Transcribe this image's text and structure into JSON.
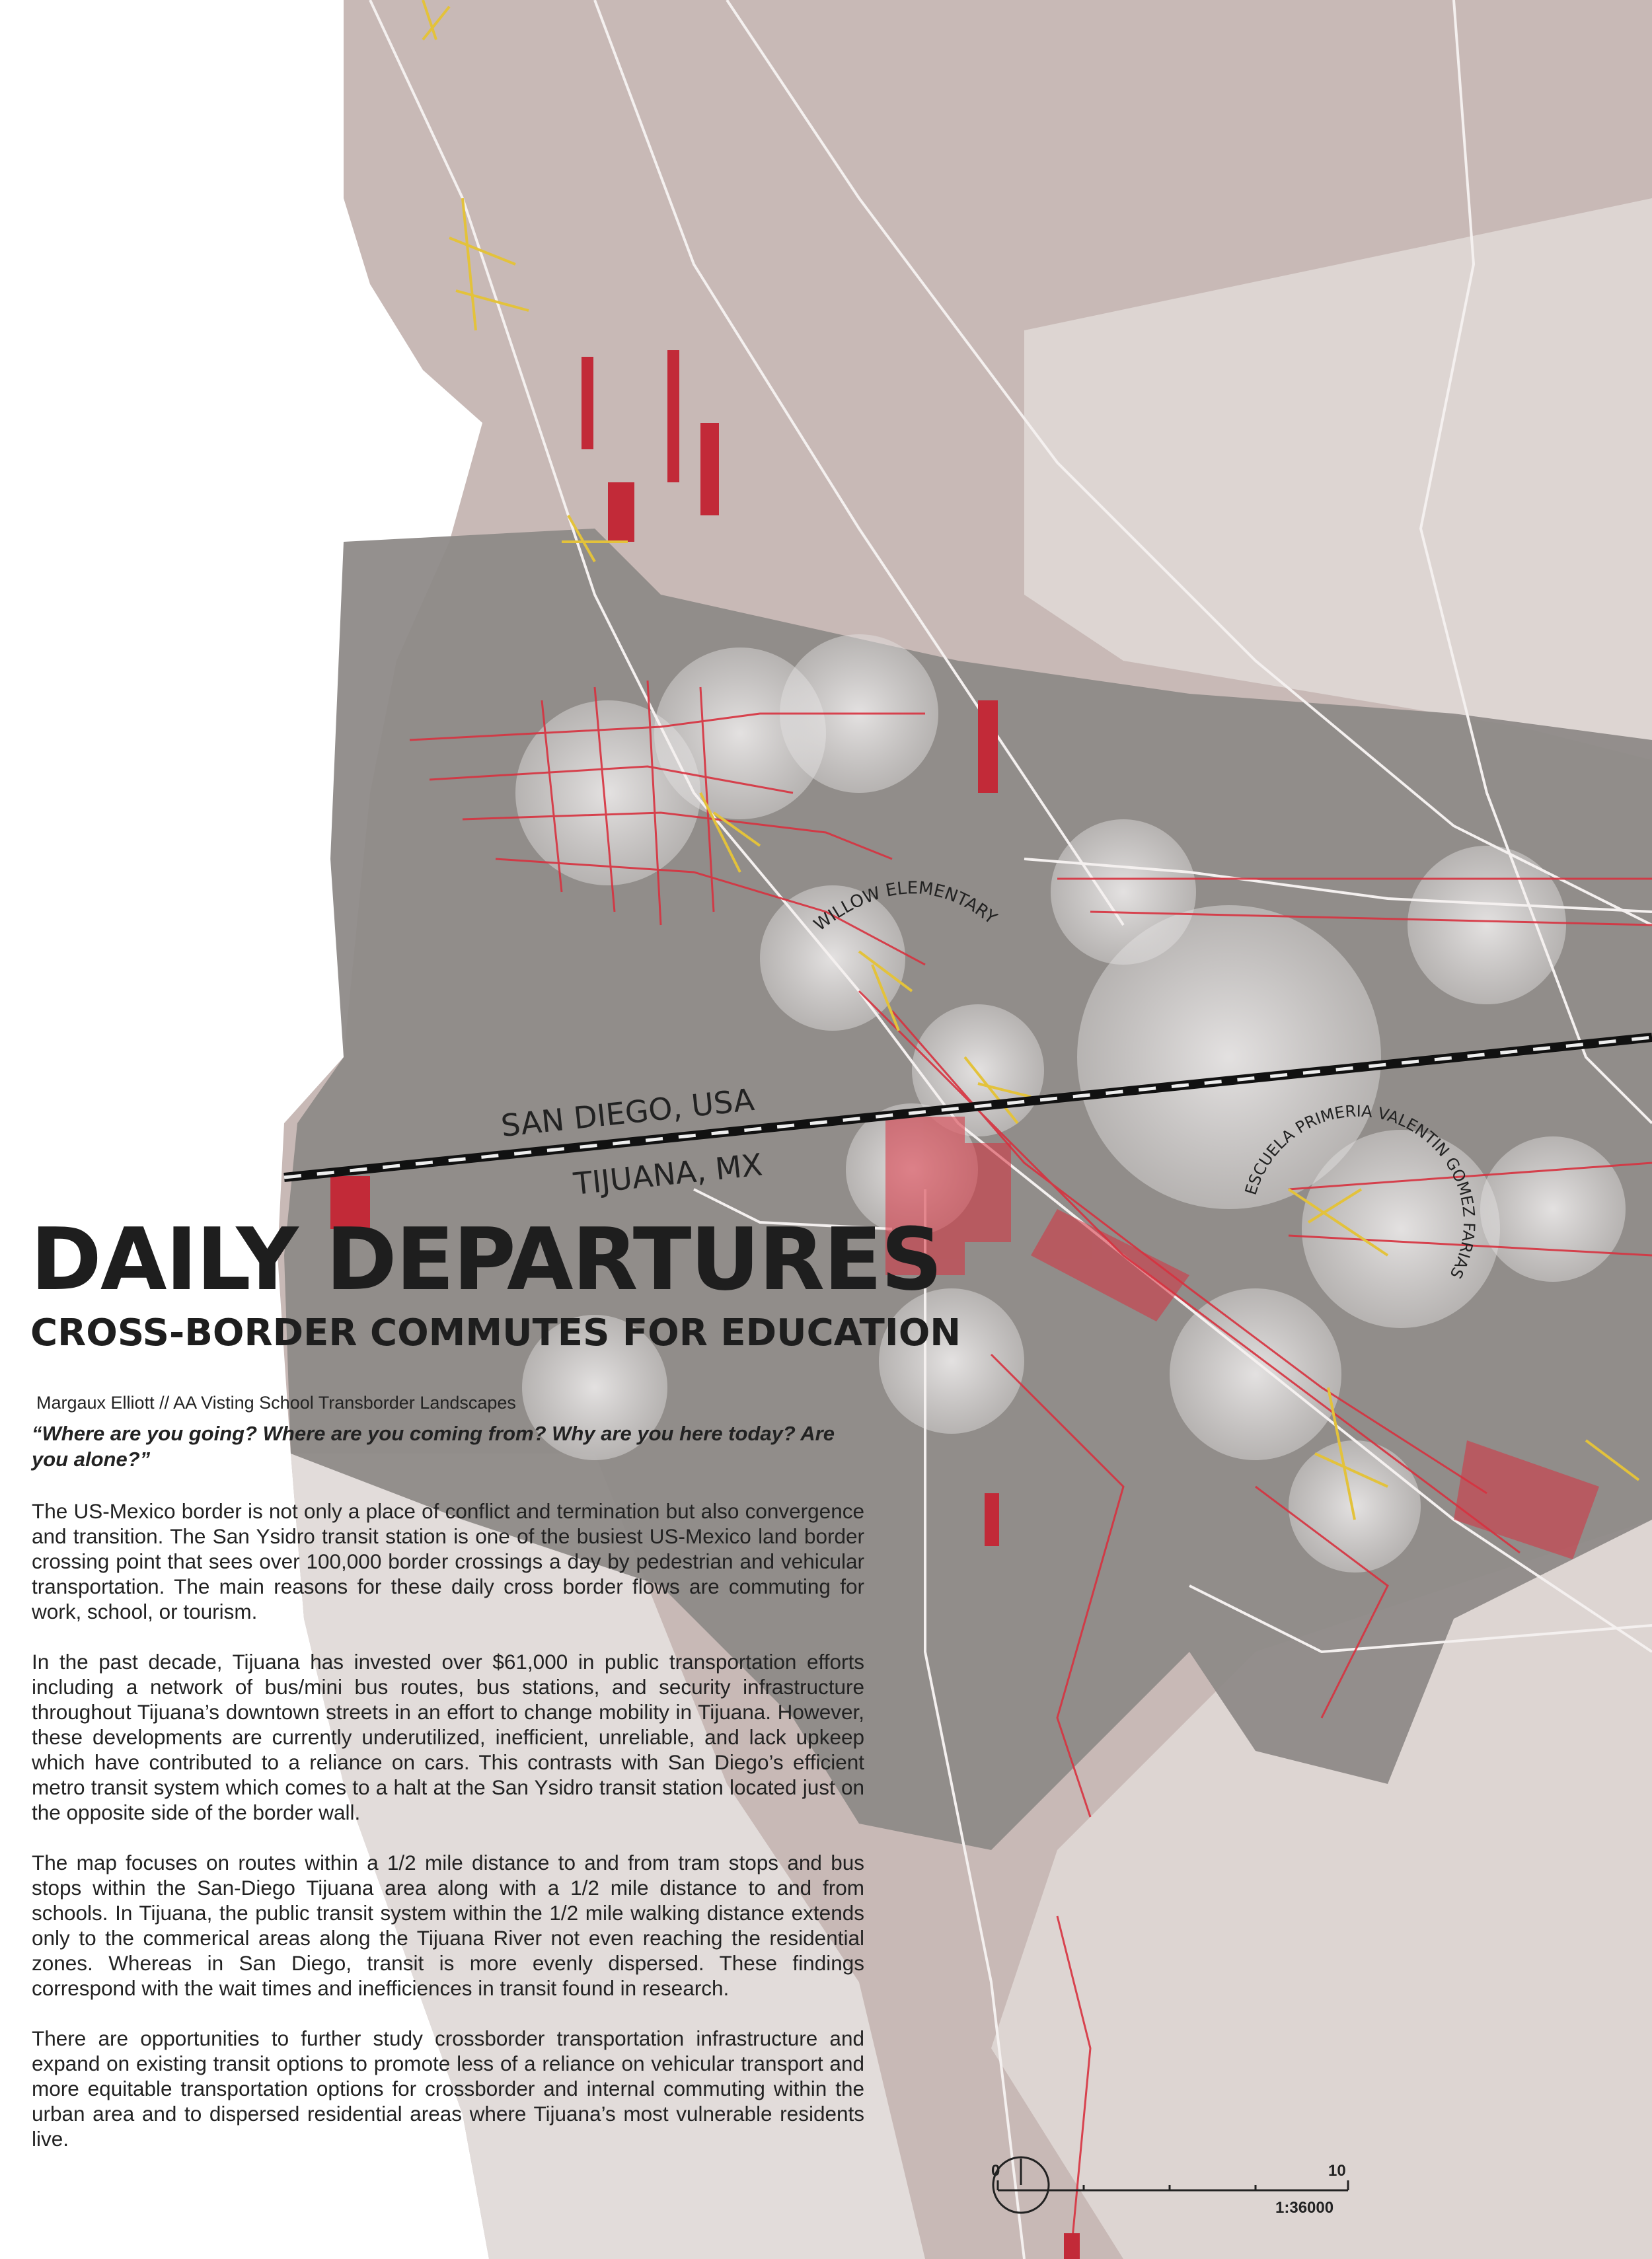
{
  "map": {
    "country_labels": {
      "usa": "SAN DIEGO, USA",
      "mexico": "TIJUANA, MX"
    },
    "school_labels": {
      "willow": "WILLOW ELEMENTARY",
      "escuela": "ESCUELA PRIMERIA VALENTIN GOMEZ FARIAS"
    },
    "colors": {
      "ocean": "#ffffff",
      "land": "#c8b9b6",
      "land_light": "#ddd5d2",
      "buffer_zone": "#8e8a88",
      "transit_routes": "#d7323f",
      "school_routes": "#e3c23b",
      "walk_buffer": "#e8e6e6",
      "border": "#111111"
    },
    "scale": {
      "start": "0",
      "end": "10",
      "ratio": "1:36000"
    },
    "north_arrow": "north-arrow-icon"
  },
  "header": {
    "title": "DAILY DEPARTURES",
    "subtitle": "CROSS-BORDER COMMUTES FOR EDUCATION",
    "byline": "Margaux Elliott // AA Visting School Transborder Landscapes",
    "quote": "“Where are you going? Where are you coming from? Why are you here today? Are you alone?”"
  },
  "body": {
    "p1": "The US-Mexico border is not only a place of conflict and termination but also convergence and transition.  The San Ysidro transit station is one of the busiest US-Mexico land border crossing point that sees over 100,000 border crossings a day by pedestrian and vehicular transportation.  The main reasons for these daily cross border flows are commuting for work, school, or tourism.",
    "p2": "In the past decade, Tijuana has invested over $61,000 in public transportation efforts including a network of bus/mini bus routes, bus stations, and security infrastructure throughout Tijuana’s downtown streets in an effort to change mobility in Tijuana. However, these developments are currently underutilized, inefficient, unreliable, and lack upkeep which have contributed to a reliance on cars. This contrasts with San Diego’s efficient metro transit system which comes to a halt at the San Ysidro transit station located just on the opposite side of the border wall.",
    "p3": "The map focuses on routes within a 1/2 mile distance to and from tram stops and bus stops within the San-Diego Tijuana area along with a 1/2 mile distance to and from schools. In Tijuana, the public transit system within the 1/2 mile walking distance extends only to the commerical areas along the Tijuana River not even reaching the residential zones. Whereas in San Diego, transit is more evenly dispersed. These findings correspond with the wait times and inefficiences in transit found in research.",
    "p4": "There are opportunities to further study crossborder transportation infrastructure and expand on existing transit options to promote less of a reliance on vehicular transport and more equitable transportation options for crossborder and internal commuting within the urban area and to dispersed residential areas where Tijuana’s most vulnerable residents live."
  }
}
